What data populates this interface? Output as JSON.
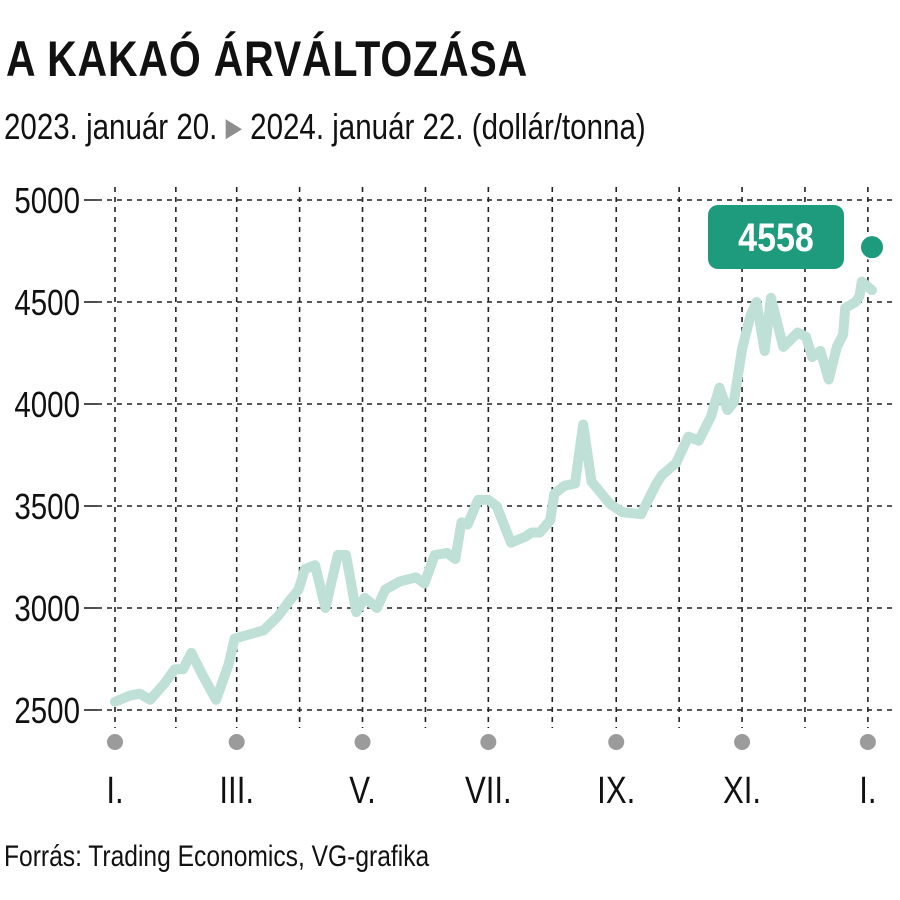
{
  "title": "A KAKAÓ ÁRVÁLTOZÁSA",
  "subtitle": {
    "start": "2023. január 20.",
    "end": "2024. január 22. (dollár/tonna)"
  },
  "source": "Forrás: Trading Economics, VG-grafika",
  "colors": {
    "line": "#bfe0d6",
    "accent": "#1e9a7c",
    "grid": "#222222",
    "month_dot": "#9b9b9b"
  },
  "chart_data": {
    "type": "line",
    "title": "A KAKAÓ ÁRVÁLTOZÁSA",
    "unit": "dollár/tonna",
    "y_ticks": [
      2500,
      3000,
      3500,
      4000,
      4500,
      5000
    ],
    "ylim": [
      2450,
      5050
    ],
    "x_range": [
      "2023-01-20",
      "2024-01-22"
    ],
    "x_ticks": [
      {
        "label": "I.",
        "date": "2023-01-20"
      },
      {
        "label": "III.",
        "date": "2023-03-20"
      },
      {
        "label": "V.",
        "date": "2023-05-20"
      },
      {
        "label": "VII.",
        "date": "2023-07-20"
      },
      {
        "label": "IX.",
        "date": "2023-09-20"
      },
      {
        "label": "XI.",
        "date": "2023-11-20"
      },
      {
        "label": "I.",
        "date": "2024-01-20"
      }
    ],
    "grid": true,
    "last_value_label": "4558",
    "series": [
      {
        "points": [
          [
            "2023-01-20",
            2540
          ],
          [
            "2023-01-27",
            2570
          ],
          [
            "2023-02-01",
            2580
          ],
          [
            "2023-02-06",
            2550
          ],
          [
            "2023-02-13",
            2630
          ],
          [
            "2023-02-18",
            2700
          ],
          [
            "2023-02-22",
            2700
          ],
          [
            "2023-02-26",
            2780
          ],
          [
            "2023-03-03",
            2680
          ],
          [
            "2023-03-10",
            2550
          ],
          [
            "2023-03-16",
            2720
          ],
          [
            "2023-03-19",
            2850
          ],
          [
            "2023-03-26",
            2870
          ],
          [
            "2023-04-02",
            2890
          ],
          [
            "2023-04-09",
            2960
          ],
          [
            "2023-04-15",
            3040
          ],
          [
            "2023-04-19",
            3090
          ],
          [
            "2023-04-22",
            3190
          ],
          [
            "2023-04-27",
            3210
          ],
          [
            "2023-05-02",
            3000
          ],
          [
            "2023-05-08",
            3260
          ],
          [
            "2023-05-12",
            3260
          ],
          [
            "2023-05-17",
            2980
          ],
          [
            "2023-05-21",
            3050
          ],
          [
            "2023-05-27",
            3000
          ],
          [
            "2023-05-31",
            3090
          ],
          [
            "2023-06-07",
            3130
          ],
          [
            "2023-06-15",
            3150
          ],
          [
            "2023-06-19",
            3120
          ],
          [
            "2023-06-24",
            3260
          ],
          [
            "2023-06-30",
            3270
          ],
          [
            "2023-07-04",
            3240
          ],
          [
            "2023-07-07",
            3420
          ],
          [
            "2023-07-10",
            3410
          ],
          [
            "2023-07-15",
            3530
          ],
          [
            "2023-07-20",
            3530
          ],
          [
            "2023-07-24",
            3500
          ],
          [
            "2023-07-31",
            3320
          ],
          [
            "2023-08-07",
            3350
          ],
          [
            "2023-08-10",
            3370
          ],
          [
            "2023-08-14",
            3370
          ],
          [
            "2023-08-19",
            3430
          ],
          [
            "2023-08-21",
            3560
          ],
          [
            "2023-08-26",
            3600
          ],
          [
            "2023-08-31",
            3610
          ],
          [
            "2023-09-04",
            3900
          ],
          [
            "2023-09-08",
            3620
          ],
          [
            "2023-09-17",
            3510
          ],
          [
            "2023-09-23",
            3470
          ],
          [
            "2023-10-02",
            3460
          ],
          [
            "2023-10-09",
            3600
          ],
          [
            "2023-10-12",
            3650
          ],
          [
            "2023-10-19",
            3710
          ],
          [
            "2023-10-25",
            3840
          ],
          [
            "2023-10-30",
            3820
          ],
          [
            "2023-11-05",
            3940
          ],
          [
            "2023-11-09",
            4080
          ],
          [
            "2023-11-13",
            3970
          ],
          [
            "2023-11-16",
            4010
          ],
          [
            "2023-11-20",
            4270
          ],
          [
            "2023-11-24",
            4430
          ],
          [
            "2023-11-27",
            4500
          ],
          [
            "2023-12-01",
            4260
          ],
          [
            "2023-12-04",
            4520
          ],
          [
            "2023-12-10",
            4280
          ],
          [
            "2023-12-17",
            4350
          ],
          [
            "2023-12-21",
            4330
          ],
          [
            "2023-12-24",
            4230
          ],
          [
            "2023-12-28",
            4260
          ],
          [
            "2024-01-01",
            4120
          ],
          [
            "2024-01-05",
            4280
          ],
          [
            "2024-01-08",
            4340
          ],
          [
            "2024-01-09",
            4470
          ],
          [
            "2024-01-14",
            4500
          ],
          [
            "2024-01-16",
            4530
          ],
          [
            "2024-01-17",
            4600
          ],
          [
            "2024-01-22",
            4558
          ]
        ]
      }
    ]
  }
}
